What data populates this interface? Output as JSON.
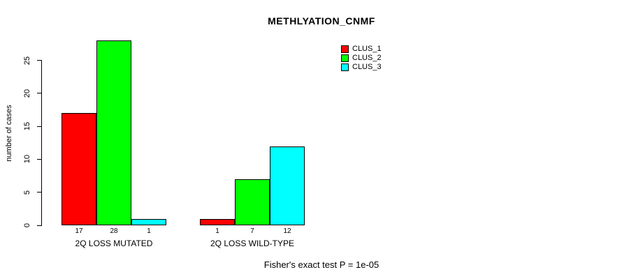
{
  "figure": {
    "background": "#FFFFFF",
    "text_color": "#000000"
  },
  "chart_data": {
    "type": "bar",
    "title": "METHLYATION_CNMF",
    "ylabel": "number of cases",
    "xlabel": "",
    "categories": [
      "2Q LOSS MUTATED",
      "2Q LOSS WILD-TYPE"
    ],
    "series": [
      {
        "name": "CLUS_1",
        "color": "#FF0000",
        "values": [
          17,
          1
        ]
      },
      {
        "name": "CLUS_2",
        "color": "#00FF00",
        "values": [
          28,
          7
        ]
      },
      {
        "name": "CLUS_3",
        "color": "#00FFFF",
        "values": [
          1,
          12
        ]
      }
    ],
    "bar_value_labels": [
      [
        "17",
        "28",
        "1"
      ],
      [
        "1",
        "7",
        "12"
      ]
    ],
    "yticks": [
      0,
      5,
      10,
      15,
      20,
      25
    ],
    "ylim": [
      0,
      28
    ],
    "grid": false,
    "legend_position": "top-right",
    "annotation": "Fisher's exact test P = 1e-05"
  }
}
